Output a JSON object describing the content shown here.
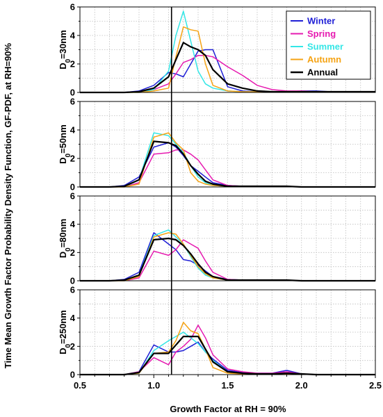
{
  "chart_data": {
    "type": "line",
    "y_title": "Time Mean Growth Factor Probability Density Function, GF-PDF, at RH=90%",
    "xlabel": "Growth Factor at RH = 90%",
    "xlim": [
      0.5,
      2.5
    ],
    "x_ticks": [
      "0.5",
      "1.0",
      "1.5",
      "2.0",
      "2.5"
    ],
    "y_ticks": [
      "0",
      "2",
      "4",
      "6"
    ],
    "ylim": [
      0,
      6
    ],
    "grid": true,
    "legend_position": "top-right of first panel",
    "reference_line_x": 1.12,
    "x": [
      0.5,
      0.6,
      0.7,
      0.8,
      0.9,
      1.0,
      1.1,
      1.15,
      1.2,
      1.25,
      1.3,
      1.35,
      1.4,
      1.5,
      1.6,
      1.7,
      1.8,
      1.9,
      2.0,
      2.1,
      2.2,
      2.3,
      2.4,
      2.5
    ],
    "series_styles": [
      {
        "name": "Winter",
        "color": "#1f1fd6"
      },
      {
        "name": "Spring",
        "color": "#e61ab0"
      },
      {
        "name": "Summer",
        "color": "#33e6e6"
      },
      {
        "name": "Autumn",
        "color": "#f5a314"
      },
      {
        "name": "Annual",
        "color": "#000000"
      }
    ],
    "panels": [
      {
        "label_main": "D",
        "label_sub": "0",
        "label_rest": "=30nm",
        "series": [
          {
            "name": "Winter",
            "values": [
              0,
              0,
              0,
              0,
              0.1,
              0.5,
              1.4,
              1.3,
              1.1,
              2.0,
              2.9,
              3.0,
              3.0,
              0.4,
              0.1,
              0.05,
              0.05,
              0.05,
              0.1,
              0.1,
              0.05,
              0.05,
              0.05,
              0.05
            ]
          },
          {
            "name": "Spring",
            "values": [
              0,
              0,
              0,
              0,
              0.05,
              0.2,
              0.6,
              1.3,
              2.1,
              2.3,
              2.6,
              2.6,
              2.5,
              1.8,
              1.2,
              0.5,
              0.2,
              0.1,
              0.1,
              0.05,
              0.05,
              0.05,
              0.05,
              0.05
            ]
          },
          {
            "name": "Summer",
            "values": [
              0,
              0,
              0,
              0,
              0,
              0.2,
              1.5,
              4.0,
              5.7,
              3.6,
              1.5,
              0.6,
              0.3,
              0.1,
              0.05,
              0.05,
              0.05,
              0.05,
              0.05,
              0.05,
              0.05,
              0.05,
              0.05,
              0.05
            ]
          },
          {
            "name": "Autumn",
            "values": [
              0,
              0,
              0,
              0,
              0,
              0.1,
              0.3,
              2.5,
              4.6,
              4.4,
              4.3,
              2.0,
              0.5,
              0.1,
              0.05,
              0.05,
              0.05,
              0.05,
              0.05,
              0.05,
              0.05,
              0.05,
              0.05,
              0.05
            ]
          },
          {
            "name": "Annual",
            "values": [
              0,
              0,
              0,
              0,
              0.05,
              0.3,
              1.1,
              2.3,
              3.5,
              3.2,
              3.0,
              2.6,
              1.6,
              0.6,
              0.3,
              0.1,
              0.05,
              0.05,
              0.05,
              0.05,
              0.05,
              0.05,
              0.05,
              0.05
            ]
          }
        ]
      },
      {
        "label_main": "D",
        "label_sub": "0",
        "label_rest": "=50nm",
        "series": [
          {
            "name": "Winter",
            "values": [
              0,
              0,
              0,
              0.1,
              0.7,
              2.8,
              3.1,
              2.8,
              2.2,
              1.5,
              1.1,
              0.7,
              0.3,
              0.1,
              0.05,
              0.05,
              0.05,
              0.05,
              0,
              0,
              0,
              0,
              0,
              0
            ]
          },
          {
            "name": "Spring",
            "values": [
              0,
              0,
              0,
              0,
              0.3,
              2.3,
              2.4,
              2.6,
              2.6,
              2.3,
              1.9,
              1.2,
              0.5,
              0.1,
              0.05,
              0.05,
              0.05,
              0.05,
              0,
              0,
              0,
              0,
              0,
              0
            ]
          },
          {
            "name": "Summer",
            "values": [
              0,
              0,
              0,
              0,
              0.5,
              3.8,
              3.6,
              3.0,
              2.4,
              1.5,
              0.7,
              0.3,
              0.1,
              0.05,
              0.05,
              0.05,
              0.05,
              0.05,
              0,
              0,
              0,
              0,
              0,
              0
            ]
          },
          {
            "name": "Autumn",
            "values": [
              0,
              0,
              0,
              0,
              0.2,
              3.5,
              3.8,
              3.1,
              2.6,
              1.0,
              0.4,
              0.2,
              0.1,
              0.05,
              0.05,
              0.05,
              0.05,
              0.05,
              0,
              0,
              0,
              0,
              0,
              0
            ]
          },
          {
            "name": "Annual",
            "values": [
              0,
              0,
              0,
              0.05,
              0.5,
              3.2,
              3.1,
              2.9,
              2.3,
              1.5,
              0.9,
              0.4,
              0.2,
              0.05,
              0.05,
              0.05,
              0.05,
              0.05,
              0,
              0,
              0,
              0,
              0,
              0
            ]
          }
        ]
      },
      {
        "label_main": "D",
        "label_sub": "0",
        "label_rest": "=80nm",
        "series": [
          {
            "name": "Winter",
            "values": [
              0,
              0,
              0,
              0.1,
              0.6,
              3.4,
              2.6,
              2.2,
              1.5,
              1.4,
              1.1,
              0.7,
              0.3,
              0.1,
              0.05,
              0.05,
              0.05,
              0.05,
              0,
              0,
              0,
              0,
              0,
              0
            ]
          },
          {
            "name": "Spring",
            "values": [
              0,
              0,
              0,
              0,
              0.2,
              2.1,
              1.8,
              2.2,
              2.9,
              2.6,
              2.3,
              1.4,
              0.6,
              0.1,
              0.05,
              0.05,
              0.05,
              0.05,
              0,
              0,
              0,
              0,
              0,
              0
            ]
          },
          {
            "name": "Summer",
            "values": [
              0,
              0,
              0,
              0,
              0.4,
              3.2,
              3.6,
              3.1,
              2.6,
              1.7,
              0.9,
              0.4,
              0.2,
              0.05,
              0.05,
              0.05,
              0.05,
              0.05,
              0,
              0,
              0,
              0,
              0,
              0
            ]
          },
          {
            "name": "Autumn",
            "values": [
              0,
              0,
              0,
              0,
              0.3,
              3.1,
              3.4,
              3.3,
              2.6,
              1.8,
              1.0,
              0.5,
              0.2,
              0.05,
              0.05,
              0.05,
              0.05,
              0.05,
              0,
              0,
              0,
              0,
              0,
              0
            ]
          },
          {
            "name": "Annual",
            "values": [
              0,
              0,
              0,
              0.05,
              0.4,
              2.9,
              3.0,
              2.9,
              2.5,
              1.9,
              1.2,
              0.6,
              0.3,
              0.05,
              0.05,
              0.05,
              0.05,
              0.05,
              0,
              0,
              0,
              0,
              0,
              0
            ]
          }
        ]
      },
      {
        "label_main": "D",
        "label_sub": "0",
        "label_rest": "=250nm",
        "series": [
          {
            "name": "Winter",
            "values": [
              0,
              0,
              0,
              0,
              0.2,
              2.1,
              1.6,
              1.6,
              1.7,
              2.0,
              2.3,
              1.6,
              1.1,
              0.3,
              0.15,
              0.1,
              0.1,
              0.3,
              0.05,
              0,
              0,
              0,
              0,
              0
            ]
          },
          {
            "name": "Spring",
            "values": [
              0,
              0,
              0,
              0,
              0.2,
              1.2,
              0.7,
              1.6,
              2.0,
              2.5,
              3.5,
              2.6,
              1.4,
              0.4,
              0.2,
              0.1,
              0.1,
              0.2,
              0.05,
              0,
              0,
              0,
              0,
              0
            ]
          },
          {
            "name": "Summer",
            "values": [
              0,
              0,
              0,
              0,
              0.1,
              1.7,
              2.4,
              2.7,
              3.0,
              2.6,
              2.2,
              1.6,
              1.0,
              0.2,
              0.1,
              0.05,
              0.05,
              0.1,
              0.05,
              0,
              0,
              0,
              0,
              0
            ]
          },
          {
            "name": "Autumn",
            "values": [
              0,
              0,
              0,
              0,
              0.1,
              1.5,
              1.6,
              2.4,
              3.7,
              3.1,
              2.9,
              1.8,
              0.5,
              0.1,
              0.05,
              0.05,
              0.05,
              0.05,
              0.05,
              0,
              0,
              0,
              0,
              0
            ]
          },
          {
            "name": "Annual",
            "values": [
              0,
              0,
              0,
              0,
              0.15,
              1.5,
              1.5,
              2.1,
              2.7,
              2.7,
              2.7,
              1.8,
              0.9,
              0.2,
              0.1,
              0.05,
              0.05,
              0.1,
              0.05,
              0,
              0,
              0,
              0,
              0
            ]
          }
        ]
      }
    ]
  }
}
